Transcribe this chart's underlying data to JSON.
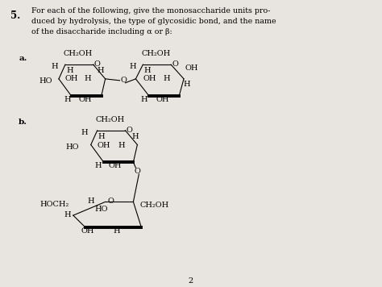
{
  "background_color": "#e8e5e0",
  "question_number": "5.",
  "question_text": "For each of the following, give the monosaccharide units pro-\nduced by hydrolysis, the type of glycosidic bond, and the name\nof the disaccharide including α or β:",
  "part_a_label": "a.",
  "part_b_label": "b.",
  "page_number": "2",
  "font_size_main": 7.0,
  "font_size_label": 7.5,
  "font_size_q": 8.5
}
